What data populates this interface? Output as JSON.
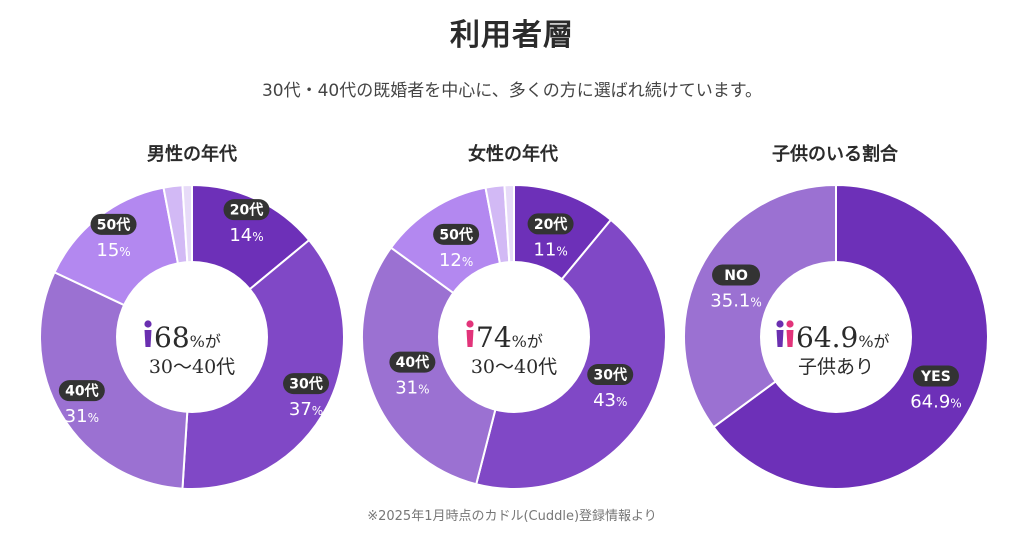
{
  "page": {
    "title": "利用者層",
    "subtitle": "30代・40代の既婚者を中心に、多くの方に選ばれ続けています。",
    "footnote": "※2025年1月時点のカドル(Cuddle)登録情報より"
  },
  "colors": {
    "deep": "#6d30b8",
    "mid": "#8048c6",
    "soft": "#9b71d2",
    "light": "#b388f0",
    "pale": "#d2b9f5",
    "paler": "#e7dbf8",
    "label_bg": "#333333",
    "female_icon": "#e2347a",
    "male_icon": "#6a2fb0"
  },
  "chart_data": [
    {
      "type": "pie",
      "title": "男性の年代",
      "center": {
        "value": "68",
        "unit": "%が",
        "line2": "30〜40代",
        "icon": "male-person-icon"
      },
      "slices": [
        {
          "label": "20代",
          "value": 14,
          "text": "14",
          "unit": "%",
          "color": "#6d30b8"
        },
        {
          "label": "30代",
          "value": 37,
          "text": "37",
          "unit": "%",
          "color": "#8048c6"
        },
        {
          "label": "40代",
          "value": 31,
          "text": "31",
          "unit": "%",
          "color": "#9b71d2"
        },
        {
          "label": "50代",
          "value": 15,
          "text": "15",
          "unit": "%",
          "color": "#b388f0"
        },
        {
          "label": "",
          "value": 2,
          "text": "",
          "unit": "",
          "color": "#d2b9f5"
        },
        {
          "label": "",
          "value": 1,
          "text": "",
          "unit": "",
          "color": "#e7dbf8"
        }
      ]
    },
    {
      "type": "pie",
      "title": "女性の年代",
      "center": {
        "value": "74",
        "unit": "%が",
        "line2": "30〜40代",
        "icon": "female-person-icon"
      },
      "slices": [
        {
          "label": "20代",
          "value": 11,
          "text": "11",
          "unit": "%",
          "color": "#6d30b8"
        },
        {
          "label": "30代",
          "value": 43,
          "text": "43",
          "unit": "%",
          "color": "#8048c6"
        },
        {
          "label": "40代",
          "value": 31,
          "text": "31",
          "unit": "%",
          "color": "#9b71d2"
        },
        {
          "label": "50代",
          "value": 12,
          "text": "12",
          "unit": "%",
          "color": "#b388f0"
        },
        {
          "label": "",
          "value": 2,
          "text": "",
          "unit": "",
          "color": "#d2b9f5"
        },
        {
          "label": "",
          "value": 1,
          "text": "",
          "unit": "",
          "color": "#e7dbf8"
        }
      ]
    },
    {
      "type": "pie",
      "title": "子供のいる割合",
      "center": {
        "value": "64.9",
        "unit": "%が",
        "line2": "子供あり",
        "icon": "couple-icon"
      },
      "slices": [
        {
          "label": "YES",
          "value": 64.9,
          "text": "64.9",
          "unit": "%",
          "color": "#6d30b8"
        },
        {
          "label": "NO",
          "value": 35.1,
          "text": "35.1",
          "unit": "%",
          "color": "#9b71d2"
        }
      ]
    }
  ]
}
